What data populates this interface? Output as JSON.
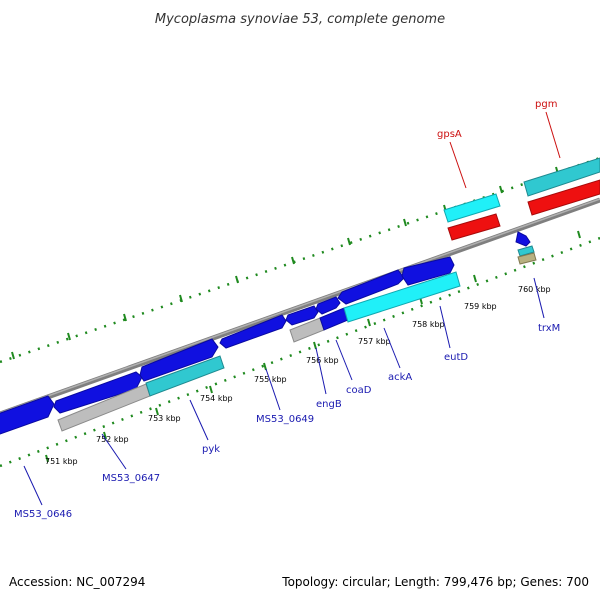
{
  "title": "Mycoplasma synoviae 53, complete genome",
  "footer": {
    "accession": "Accession: NC_007294",
    "summary": "Topology: circular; Length: 799,476 bp; Genes: 700"
  },
  "colors": {
    "backbone": "#7f7f7f",
    "tick": "#1f8a1f",
    "cds_blue": "#1010e0",
    "cds_cyan": "#30c8d0",
    "cds_bright_cyan": "#20f0f8",
    "cds_red": "#ee1010",
    "cds_gray": "#bdbdbd",
    "cds_tan": "#b8b080",
    "label_blue": "#1a1ab0",
    "label_red": "#cc1010"
  },
  "scale_labels": [
    "751 kbp",
    "752 kbp",
    "753 kbp",
    "754 kbp",
    "755 kbp",
    "756 kbp",
    "757 kbp",
    "758 kbp",
    "759 kbp",
    "760 kbp"
  ],
  "gene_labels": [
    {
      "name": "MS53_0646",
      "color": "blue"
    },
    {
      "name": "MS53_0647",
      "color": "blue"
    },
    {
      "name": "pyk",
      "color": "blue"
    },
    {
      "name": "MS53_0649",
      "color": "blue"
    },
    {
      "name": "engB",
      "color": "blue"
    },
    {
      "name": "coaD",
      "color": "blue"
    },
    {
      "name": "ackA",
      "color": "blue"
    },
    {
      "name": "eutD",
      "color": "blue"
    },
    {
      "name": "trxM",
      "color": "blue"
    },
    {
      "name": "gpsA",
      "color": "red"
    },
    {
      "name": "pgm",
      "color": "red"
    }
  ]
}
